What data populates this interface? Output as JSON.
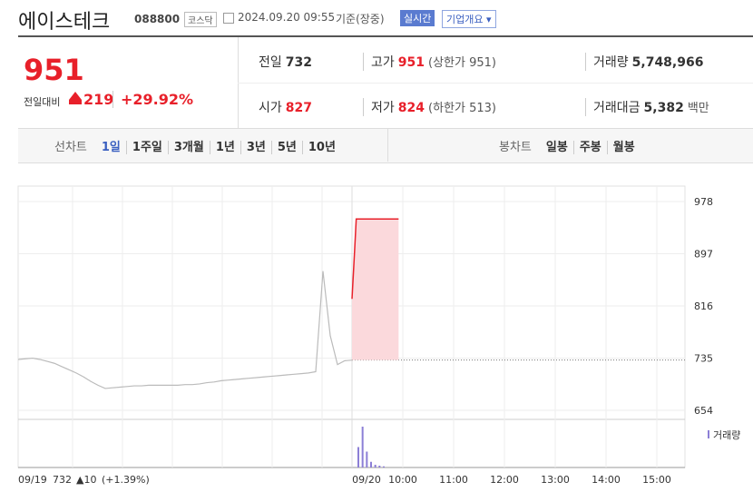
{
  "header": {
    "name": "에이스테크",
    "code": "088800",
    "market": "코스닥",
    "datetime": "2024.09.20 09:55",
    "basis": "기준(장중)",
    "badge": "실시간",
    "overview": "기업개요"
  },
  "quote": {
    "price": "951",
    "change_label": "전일대비",
    "change": "219",
    "rate": "+29.92%"
  },
  "stats": [
    [
      {
        "label": "전일",
        "value": "732"
      },
      {
        "label": "고가",
        "value": "951",
        "extra": "(상한가 951)"
      },
      {
        "label": "거래량",
        "value": "5,748,966"
      }
    ],
    [
      {
        "label": "시가",
        "value": "827"
      },
      {
        "label": "저가",
        "value": "824",
        "extra": "(하한가 513)"
      },
      {
        "label": "거래대금",
        "value": "5,382",
        "extra": "백만"
      }
    ]
  ],
  "tabs": {
    "line_label": "선차트",
    "line": [
      "1일",
      "1주일",
      "3개월",
      "1년",
      "3년",
      "5년",
      "10년"
    ],
    "candle_label": "봉차트",
    "candle": [
      "일봉",
      "주봉",
      "월봉"
    ]
  },
  "chart_data": {
    "type": "line",
    "ylim": [
      640,
      1002
    ],
    "yticks": [
      654,
      735,
      816,
      897,
      978
    ],
    "xlim": [
      "09:00",
      "15:30"
    ],
    "xticks": [
      "10:00",
      "11:00",
      "12:00",
      "13:00",
      "14:00",
      "15:00"
    ],
    "prev_day": {
      "label": "09/19",
      "values": [
        733,
        734,
        735,
        733,
        730,
        727,
        722,
        717,
        712,
        706,
        699,
        693,
        688,
        689,
        690,
        691,
        692,
        692,
        693,
        693,
        693,
        693,
        693,
        694,
        694,
        695,
        697,
        698,
        700,
        701,
        702,
        703,
        704,
        705,
        706,
        707,
        708,
        709,
        710,
        711,
        712,
        714,
        870,
        770,
        725,
        731,
        732
      ]
    },
    "today": {
      "label": "09/20",
      "x": [
        "09:00",
        "09:03",
        "09:05",
        "09:10",
        "09:15",
        "09:20",
        "09:25",
        "09:30",
        "09:35",
        "09:40",
        "09:45",
        "09:50",
        "09:55"
      ],
      "values": [
        827,
        900,
        951,
        951,
        951,
        951,
        951,
        951,
        951,
        951,
        951,
        951,
        951
      ]
    },
    "prev_close": 732,
    "prev_change": "▲10",
    "prev_rate": "(+1.39%)",
    "volume": {
      "name": "거래량",
      "x": [
        "09:00",
        "09:05",
        "09:10",
        "09:15",
        "09:20",
        "09:25",
        "09:30"
      ],
      "values": [
        900000,
        1800000,
        700000,
        250000,
        120000,
        80000,
        50000
      ]
    },
    "line_color": "#e8202a",
    "fill_color": "#fbd9dc",
    "volume_color": "#8c7fd6"
  }
}
